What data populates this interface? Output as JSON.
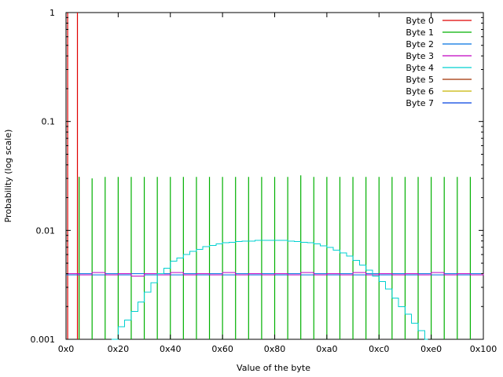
{
  "chart_data": {
    "type": "line",
    "title": "",
    "xlabel": "Value of the byte",
    "ylabel": "Probability (log scale)",
    "xlim": [
      0,
      256
    ],
    "ylim": [
      0.001,
      1
    ],
    "log_y": true,
    "grid": false,
    "legend_position": "top-right",
    "x_ticks": [
      {
        "value": 0,
        "label": "0x0"
      },
      {
        "value": 32,
        "label": "0x20"
      },
      {
        "value": 64,
        "label": "0x40"
      },
      {
        "value": 96,
        "label": "0x60"
      },
      {
        "value": 128,
        "label": "0x80"
      },
      {
        "value": 160,
        "label": "0xa0"
      },
      {
        "value": 192,
        "label": "0xc0"
      },
      {
        "value": 224,
        "label": "0xe0"
      },
      {
        "value": 256,
        "label": "0x100"
      }
    ],
    "y_ticks": [
      {
        "value": 1,
        "label": "1"
      },
      {
        "value": 0.1,
        "label": "0.1"
      },
      {
        "value": 0.01,
        "label": "0.01"
      },
      {
        "value": 0.001,
        "label": "0.001"
      }
    ],
    "series": [
      {
        "name": "Byte 0",
        "color": "#e00000",
        "style": "impulse",
        "points": [
          [
            1,
            1
          ],
          [
            7,
            1
          ],
          [
            8,
            0.031
          ]
        ]
      },
      {
        "name": "Byte 1",
        "color": "#00b000",
        "style": "impulse",
        "points": [
          [
            8,
            0.031
          ],
          [
            16,
            0.03
          ],
          [
            24,
            0.031
          ],
          [
            32,
            0.031
          ],
          [
            40,
            0.031
          ],
          [
            48,
            0.031
          ],
          [
            56,
            0.031
          ],
          [
            64,
            0.031
          ],
          [
            72,
            0.031
          ],
          [
            80,
            0.031
          ],
          [
            88,
            0.031
          ],
          [
            96,
            0.031
          ],
          [
            104,
            0.031
          ],
          [
            112,
            0.031
          ],
          [
            120,
            0.031
          ],
          [
            128,
            0.031
          ],
          [
            136,
            0.031
          ],
          [
            144,
            0.032
          ],
          [
            152,
            0.031
          ],
          [
            160,
            0.031
          ],
          [
            168,
            0.031
          ],
          [
            176,
            0.031
          ],
          [
            184,
            0.031
          ],
          [
            192,
            0.031
          ],
          [
            200,
            0.031
          ],
          [
            208,
            0.031
          ],
          [
            216,
            0.031
          ],
          [
            224,
            0.031
          ],
          [
            232,
            0.031
          ],
          [
            240,
            0.031
          ],
          [
            248,
            0.031
          ]
        ]
      },
      {
        "name": "Byte 2",
        "color": "#0070e0",
        "style": "steps",
        "points": [
          [
            0,
            0.0039
          ],
          [
            8,
            0.004
          ],
          [
            16,
            0.0039
          ],
          [
            24,
            0.004
          ],
          [
            32,
            0.0039
          ],
          [
            40,
            0.004
          ],
          [
            48,
            0.0039
          ],
          [
            56,
            0.004
          ],
          [
            64,
            0.0039
          ],
          [
            72,
            0.004
          ],
          [
            80,
            0.0039
          ],
          [
            88,
            0.004
          ],
          [
            96,
            0.0039
          ],
          [
            104,
            0.004
          ],
          [
            112,
            0.0039
          ],
          [
            120,
            0.004
          ],
          [
            128,
            0.0039
          ],
          [
            136,
            0.004
          ],
          [
            144,
            0.0039
          ],
          [
            152,
            0.004
          ],
          [
            160,
            0.0039
          ],
          [
            168,
            0.004
          ],
          [
            176,
            0.0039
          ],
          [
            184,
            0.004
          ],
          [
            192,
            0.0039
          ],
          [
            200,
            0.004
          ],
          [
            208,
            0.0039
          ],
          [
            216,
            0.004
          ],
          [
            224,
            0.0039
          ],
          [
            232,
            0.004
          ],
          [
            240,
            0.0039
          ],
          [
            248,
            0.004
          ],
          [
            256,
            0.004
          ]
        ]
      },
      {
        "name": "Byte 3",
        "color": "#c000c0",
        "style": "steps",
        "points": [
          [
            0,
            0.004
          ],
          [
            8,
            0.0039
          ],
          [
            16,
            0.0041
          ],
          [
            24,
            0.0039
          ],
          [
            32,
            0.004
          ],
          [
            40,
            0.0038
          ],
          [
            48,
            0.004
          ],
          [
            56,
            0.0039
          ],
          [
            64,
            0.0041
          ],
          [
            72,
            0.0039
          ],
          [
            80,
            0.004
          ],
          [
            88,
            0.0039
          ],
          [
            96,
            0.0041
          ],
          [
            104,
            0.0039
          ],
          [
            112,
            0.004
          ],
          [
            120,
            0.0039
          ],
          [
            128,
            0.004
          ],
          [
            136,
            0.0039
          ],
          [
            144,
            0.0041
          ],
          [
            152,
            0.0039
          ],
          [
            160,
            0.004
          ],
          [
            168,
            0.0039
          ],
          [
            176,
            0.0041
          ],
          [
            184,
            0.0039
          ],
          [
            192,
            0.004
          ],
          [
            200,
            0.0039
          ],
          [
            208,
            0.004
          ],
          [
            216,
            0.0039
          ],
          [
            224,
            0.0041
          ],
          [
            232,
            0.0039
          ],
          [
            240,
            0.004
          ],
          [
            248,
            0.0039
          ],
          [
            256,
            0.004
          ]
        ]
      },
      {
        "name": "Byte 4",
        "color": "#00d0d0",
        "style": "steps",
        "points": [
          [
            28,
            0.001
          ],
          [
            32,
            0.0013
          ],
          [
            36,
            0.0015
          ],
          [
            40,
            0.0018
          ],
          [
            44,
            0.0022
          ],
          [
            48,
            0.0027
          ],
          [
            52,
            0.0033
          ],
          [
            56,
            0.004
          ],
          [
            60,
            0.0045
          ],
          [
            64,
            0.0052
          ],
          [
            68,
            0.0056
          ],
          [
            72,
            0.006
          ],
          [
            76,
            0.0064
          ],
          [
            80,
            0.0067
          ],
          [
            84,
            0.0071
          ],
          [
            88,
            0.0073
          ],
          [
            92,
            0.0075
          ],
          [
            96,
            0.0077
          ],
          [
            100,
            0.0078
          ],
          [
            104,
            0.0079
          ],
          [
            108,
            0.008
          ],
          [
            112,
            0.008
          ],
          [
            116,
            0.0081
          ],
          [
            120,
            0.0081
          ],
          [
            124,
            0.0081
          ],
          [
            128,
            0.0081
          ],
          [
            132,
            0.0081
          ],
          [
            136,
            0.008
          ],
          [
            140,
            0.0079
          ],
          [
            144,
            0.0078
          ],
          [
            148,
            0.0077
          ],
          [
            152,
            0.0075
          ],
          [
            156,
            0.0072
          ],
          [
            160,
            0.007
          ],
          [
            164,
            0.0066
          ],
          [
            168,
            0.0062
          ],
          [
            172,
            0.0058
          ],
          [
            176,
            0.0053
          ],
          [
            180,
            0.0048
          ],
          [
            184,
            0.0043
          ],
          [
            188,
            0.0038
          ],
          [
            192,
            0.0034
          ],
          [
            196,
            0.0029
          ],
          [
            200,
            0.0024
          ],
          [
            204,
            0.002
          ],
          [
            208,
            0.0017
          ],
          [
            212,
            0.0014
          ],
          [
            216,
            0.0012
          ],
          [
            220,
            0.001
          ],
          [
            222,
            0.001
          ]
        ]
      },
      {
        "name": "Byte 5",
        "color": "#a03000",
        "style": "impulse",
        "points": []
      },
      {
        "name": "Byte 6",
        "color": "#c8b400",
        "style": "impulse",
        "points": []
      },
      {
        "name": "Byte 7",
        "color": "#0040e0",
        "style": "impulse",
        "points": []
      }
    ]
  }
}
